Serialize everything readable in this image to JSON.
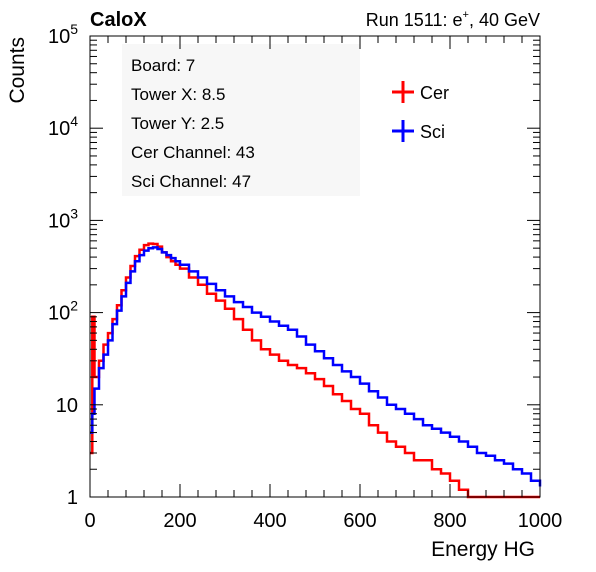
{
  "header": {
    "left_title": "CaloX",
    "right_title_prefix": "Run 1511: e",
    "right_title_sup": "+",
    "right_title_suffix": ", 40 GeV"
  },
  "info_box": {
    "lines": [
      "Board: 7",
      "Tower X: 8.5",
      "Tower Y: 2.5",
      "Cer Channel: 43",
      "Sci Channel: 47"
    ]
  },
  "colors": {
    "cer": "#ff0000",
    "sci": "#0000ff",
    "axis": "#000000",
    "box_bg": "#f7f7f7"
  },
  "chart_data": {
    "type": "line",
    "xlabel": "Energy HG",
    "ylabel": "Counts",
    "xlim": [
      0,
      1000
    ],
    "ylim": [
      1,
      100000
    ],
    "yscale": "log",
    "x_ticks": [
      0,
      200,
      400,
      600,
      800,
      1000
    ],
    "y_ticks": [
      {
        "value": 1,
        "base": "1",
        "exp": ""
      },
      {
        "value": 10,
        "base": "10",
        "exp": ""
      },
      {
        "value": 100,
        "base": "10",
        "exp": "2"
      },
      {
        "value": 1000,
        "base": "10",
        "exp": "3"
      },
      {
        "value": 10000,
        "base": "10",
        "exp": "4"
      },
      {
        "value": 100000,
        "base": "10",
        "exp": "5"
      }
    ],
    "legend": {
      "placement": "top-right",
      "entries": [
        "Cer",
        "Sci"
      ]
    },
    "series": [
      {
        "name": "Cer",
        "color": "#ff0000",
        "points": [
          [
            0,
            3
          ],
          [
            5,
            90
          ],
          [
            10,
            20
          ],
          [
            20,
            30
          ],
          [
            30,
            45
          ],
          [
            40,
            60
          ],
          [
            50,
            85
          ],
          [
            60,
            120
          ],
          [
            70,
            175
          ],
          [
            80,
            240
          ],
          [
            90,
            320
          ],
          [
            100,
            410
          ],
          [
            110,
            480
          ],
          [
            120,
            540
          ],
          [
            130,
            560
          ],
          [
            140,
            555
          ],
          [
            150,
            520
          ],
          [
            160,
            450
          ],
          [
            170,
            400
          ],
          [
            180,
            360
          ],
          [
            190,
            330
          ],
          [
            200,
            300
          ],
          [
            220,
            240
          ],
          [
            240,
            200
          ],
          [
            260,
            160
          ],
          [
            280,
            135
          ],
          [
            300,
            110
          ],
          [
            320,
            85
          ],
          [
            340,
            65
          ],
          [
            360,
            50
          ],
          [
            380,
            40
          ],
          [
            400,
            35
          ],
          [
            420,
            30
          ],
          [
            440,
            27
          ],
          [
            460,
            25
          ],
          [
            480,
            22
          ],
          [
            500,
            19
          ],
          [
            520,
            16
          ],
          [
            540,
            13
          ],
          [
            560,
            11
          ],
          [
            580,
            9
          ],
          [
            600,
            8
          ],
          [
            620,
            6
          ],
          [
            640,
            5
          ],
          [
            660,
            4
          ],
          [
            680,
            3.5
          ],
          [
            700,
            3
          ],
          [
            720,
            2.5
          ],
          [
            740,
            2.5
          ],
          [
            760,
            2
          ],
          [
            780,
            1.8
          ],
          [
            800,
            1.5
          ],
          [
            820,
            1.2
          ],
          [
            840,
            1
          ],
          [
            860,
            1
          ],
          [
            880,
            1
          ],
          [
            900,
            1
          ],
          [
            920,
            1
          ],
          [
            940,
            1
          ],
          [
            960,
            1
          ],
          [
            980,
            1
          ],
          [
            1000,
            1
          ]
        ]
      },
      {
        "name": "Sci",
        "color": "#0000ff",
        "points": [
          [
            0,
            5
          ],
          [
            5,
            8
          ],
          [
            10,
            15
          ],
          [
            20,
            25
          ],
          [
            30,
            35
          ],
          [
            40,
            50
          ],
          [
            50,
            75
          ],
          [
            60,
            105
          ],
          [
            70,
            150
          ],
          [
            80,
            210
          ],
          [
            90,
            280
          ],
          [
            100,
            360
          ],
          [
            110,
            420
          ],
          [
            120,
            470
          ],
          [
            130,
            500
          ],
          [
            140,
            510
          ],
          [
            150,
            490
          ],
          [
            160,
            450
          ],
          [
            170,
            420
          ],
          [
            180,
            390
          ],
          [
            190,
            360
          ],
          [
            200,
            330
          ],
          [
            220,
            280
          ],
          [
            240,
            240
          ],
          [
            260,
            205
          ],
          [
            280,
            175
          ],
          [
            300,
            150
          ],
          [
            320,
            130
          ],
          [
            340,
            115
          ],
          [
            360,
            100
          ],
          [
            380,
            90
          ],
          [
            400,
            80
          ],
          [
            420,
            72
          ],
          [
            440,
            65
          ],
          [
            460,
            55
          ],
          [
            480,
            45
          ],
          [
            500,
            38
          ],
          [
            520,
            32
          ],
          [
            540,
            27
          ],
          [
            560,
            23
          ],
          [
            580,
            20
          ],
          [
            600,
            17
          ],
          [
            620,
            14
          ],
          [
            640,
            12
          ],
          [
            660,
            10
          ],
          [
            680,
            9
          ],
          [
            700,
            8
          ],
          [
            720,
            7
          ],
          [
            740,
            6
          ],
          [
            760,
            5.5
          ],
          [
            780,
            5
          ],
          [
            800,
            4.5
          ],
          [
            820,
            4
          ],
          [
            840,
            3.5
          ],
          [
            860,
            3
          ],
          [
            880,
            2.8
          ],
          [
            900,
            2.5
          ],
          [
            920,
            2.3
          ],
          [
            940,
            2
          ],
          [
            960,
            1.8
          ],
          [
            980,
            1.5
          ],
          [
            1000,
            1.3
          ]
        ]
      }
    ]
  }
}
